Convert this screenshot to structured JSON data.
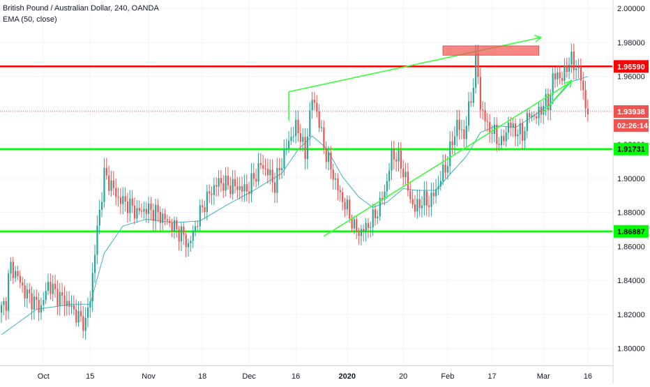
{
  "chart_data": {
    "type": "line",
    "title": "British Pound / Australian Dollar, 240, OANDA",
    "indicator": "EMA (50, close)",
    "ylim": [
      1.79,
      2.005
    ],
    "y_ticks": [
      "2.00000",
      "1.98000",
      "1.96000",
      "1.94000",
      "1.92000",
      "1.90000",
      "1.88000",
      "1.86000",
      "1.84000",
      "1.82000",
      "1.80000"
    ],
    "x_ticks": [
      "Oct",
      "15",
      "Nov",
      "18",
      "Dec",
      "16",
      "2020",
      "20",
      "Feb",
      "17",
      "Mar",
      "16"
    ],
    "price_labels": {
      "resistance": "1.96590",
      "last": "1.93938",
      "countdown": "02:26:14",
      "support_mid": "1.91731",
      "support_low": "1.86887"
    },
    "horizontal_levels": [
      {
        "value": 1.9659,
        "color": "#ff0000"
      },
      {
        "value": 1.91731,
        "color": "#00ff00"
      },
      {
        "value": 1.86887,
        "color": "#00ff00"
      }
    ],
    "last_price": 1.93938,
    "series": [
      {
        "type": "candlestick",
        "up_color": "#26a69a",
        "down_color": "#ef5350",
        "anchors": [
          [
            0,
            1.823
          ],
          [
            2,
            1.828
          ],
          [
            3,
            1.841
          ],
          [
            4,
            1.848
          ],
          [
            7,
            1.842
          ],
          [
            10,
            1.833
          ],
          [
            15,
            1.826
          ],
          [
            17,
            1.824
          ],
          [
            20,
            1.838
          ],
          [
            24,
            1.831
          ],
          [
            27,
            1.828
          ],
          [
            30,
            1.824
          ],
          [
            33,
            1.818
          ],
          [
            36,
            1.815
          ],
          [
            38,
            1.83
          ],
          [
            41,
            1.87
          ],
          [
            44,
            1.902
          ],
          [
            47,
            1.896
          ],
          [
            50,
            1.888
          ],
          [
            54,
            1.885
          ],
          [
            58,
            1.88
          ],
          [
            62,
            1.882
          ],
          [
            66,
            1.88
          ],
          [
            70,
            1.876
          ],
          [
            74,
            1.871
          ],
          [
            78,
            1.866
          ],
          [
            80,
            1.86
          ],
          [
            83,
            1.872
          ],
          [
            86,
            1.883
          ],
          [
            90,
            1.893
          ],
          [
            93,
            1.898
          ],
          [
            97,
            1.896
          ],
          [
            101,
            1.895
          ],
          [
            105,
            1.893
          ],
          [
            108,
            1.9
          ],
          [
            111,
            1.908
          ],
          [
            114,
            1.904
          ],
          [
            117,
            1.896
          ],
          [
            120,
            1.91
          ],
          [
            123,
            1.922
          ],
          [
            126,
            1.93
          ],
          [
            128,
            1.926
          ],
          [
            130,
            1.912
          ],
          [
            131,
            1.928
          ],
          [
            133,
            1.947
          ],
          [
            135,
            1.94
          ],
          [
            137,
            1.925
          ],
          [
            139,
            1.914
          ],
          [
            142,
            1.902
          ],
          [
            145,
            1.89
          ],
          [
            148,
            1.882
          ],
          [
            151,
            1.871
          ],
          [
            153,
            1.868
          ],
          [
            156,
            1.871
          ],
          [
            159,
            1.876
          ],
          [
            162,
            1.884
          ],
          [
            165,
            1.898
          ],
          [
            167,
            1.914
          ],
          [
            169,
            1.913
          ],
          [
            171,
            1.908
          ],
          [
            173,
            1.9
          ],
          [
            175,
            1.888
          ],
          [
            177,
            1.882
          ],
          [
            180,
            1.887
          ],
          [
            183,
            1.886
          ],
          [
            186,
            1.893
          ],
          [
            188,
            1.9
          ],
          [
            191,
            1.91
          ],
          [
            193,
            1.922
          ],
          [
            195,
            1.932
          ],
          [
            198,
            1.925
          ],
          [
            200,
            1.94
          ],
          [
            202,
            1.956
          ],
          [
            203,
            1.968
          ],
          [
            204,
            1.962
          ],
          [
            205,
            1.942
          ],
          [
            208,
            1.931
          ],
          [
            211,
            1.926
          ],
          [
            214,
            1.92
          ],
          [
            217,
            1.932
          ],
          [
            220,
            1.928
          ],
          [
            223,
            1.926
          ],
          [
            226,
            1.938
          ],
          [
            229,
            1.936
          ],
          [
            232,
            1.944
          ],
          [
            234,
            1.944
          ],
          [
            236,
            1.958
          ],
          [
            238,
            1.962
          ],
          [
            240,
            1.958
          ],
          [
            242,
            1.967
          ],
          [
            244,
            1.969
          ],
          [
            246,
            1.966
          ],
          [
            248,
            1.959
          ],
          [
            249,
            1.951
          ],
          [
            250,
            1.943
          ],
          [
            251,
            1.938
          ]
        ]
      },
      {
        "type": "line",
        "color": "#3bb3c3",
        "anchors": [
          [
            0,
            1.808
          ],
          [
            15,
            1.823
          ],
          [
            30,
            1.826
          ],
          [
            38,
            1.826
          ],
          [
            44,
            1.856
          ],
          [
            52,
            1.872
          ],
          [
            62,
            1.876
          ],
          [
            74,
            1.874
          ],
          [
            85,
            1.875
          ],
          [
            96,
            1.884
          ],
          [
            108,
            1.893
          ],
          [
            120,
            1.903
          ],
          [
            127,
            1.917
          ],
          [
            133,
            1.925
          ],
          [
            139,
            1.918
          ],
          [
            146,
            1.901
          ],
          [
            153,
            1.889
          ],
          [
            159,
            1.883
          ],
          [
            165,
            1.886
          ],
          [
            172,
            1.894
          ],
          [
            178,
            1.893
          ],
          [
            186,
            1.893
          ],
          [
            193,
            1.904
          ],
          [
            199,
            1.913
          ],
          [
            205,
            1.927
          ],
          [
            212,
            1.931
          ],
          [
            220,
            1.93
          ],
          [
            228,
            1.937
          ],
          [
            236,
            1.945
          ],
          [
            244,
            1.957
          ],
          [
            251,
            1.96
          ]
        ]
      }
    ]
  }
}
